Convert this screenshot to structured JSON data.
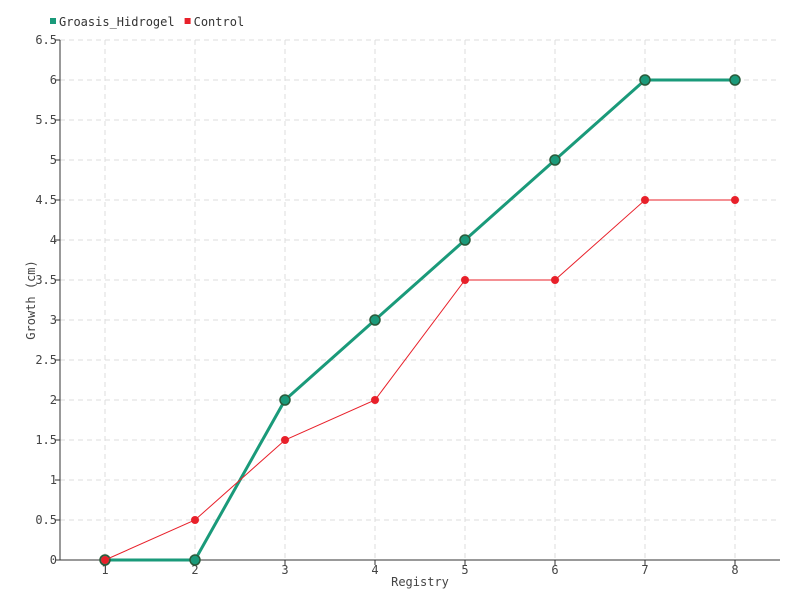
{
  "chart_data": {
    "type": "line",
    "xlabel": "Registry",
    "ylabel": "Growth (cm)",
    "x": [
      1,
      2,
      3,
      4,
      5,
      6,
      7,
      8
    ],
    "xlim": [
      0.5,
      8.5
    ],
    "ylim": [
      0,
      6.5
    ],
    "y_ticks": [
      "0",
      "0.5",
      "1",
      "1.5",
      "2",
      "2.5",
      "3",
      "3.5",
      "4",
      "4.5",
      "5",
      "5.5",
      "6",
      "6.5"
    ],
    "x_ticks": [
      "1",
      "2",
      "3",
      "4",
      "5",
      "6",
      "7",
      "8"
    ],
    "grid": true,
    "legend_position": "top-left",
    "series": [
      {
        "name": "Groasis_Hidrogel",
        "color": "#1a9a7a",
        "values": [
          0,
          0,
          2,
          3,
          4,
          5,
          6,
          6
        ]
      },
      {
        "name": "Control",
        "color": "#e8202a",
        "values": [
          0,
          0.5,
          1.5,
          2,
          3.5,
          3.5,
          4.5,
          4.5
        ]
      }
    ]
  }
}
